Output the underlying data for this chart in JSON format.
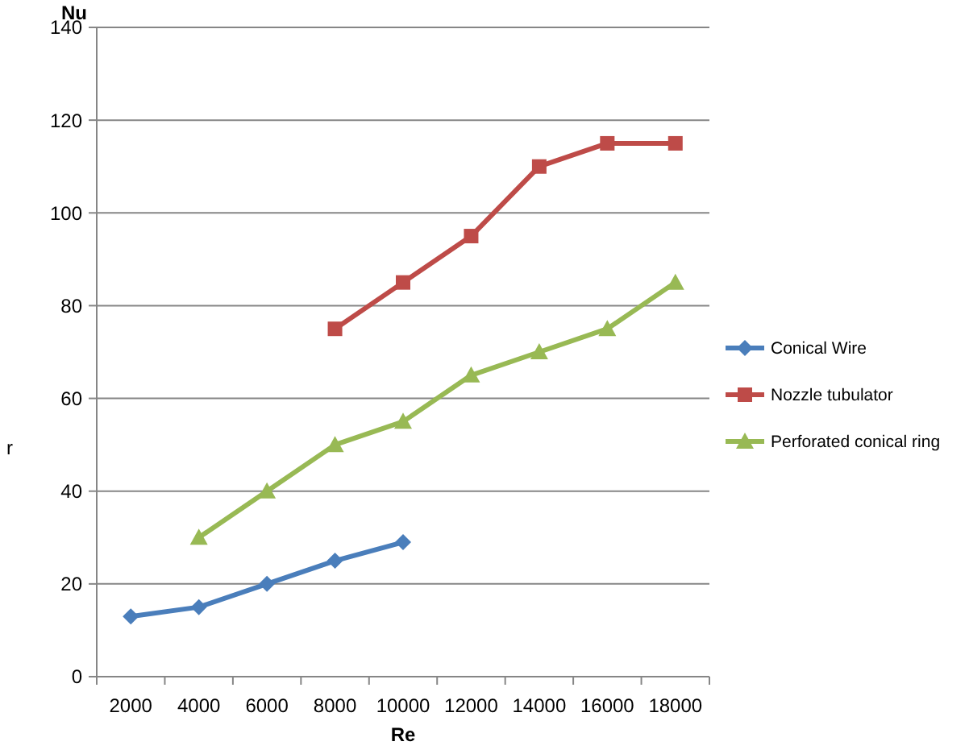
{
  "chart_data": {
    "type": "line",
    "xlabel": "Re",
    "ylabel": "Nu",
    "categories": [
      "2000",
      "4000",
      "6000",
      "8000",
      "10000",
      "12000",
      "14000",
      "16000",
      "18000"
    ],
    "series": [
      {
        "name": "Conical Wire",
        "color": "#4a7ebb",
        "marker": "diamond",
        "values": [
          13,
          15,
          20,
          25,
          29,
          null,
          null,
          null,
          null
        ]
      },
      {
        "name": "Nozzle tubulator",
        "color": "#be4b48",
        "marker": "square",
        "values": [
          null,
          null,
          null,
          75,
          85,
          95,
          110,
          115,
          115
        ]
      },
      {
        "name": "Perforated conical ring",
        "color": "#98b954",
        "marker": "triangle",
        "values": [
          null,
          30,
          40,
          50,
          55,
          65,
          70,
          75,
          85
        ]
      }
    ],
    "ylim": [
      0,
      140
    ],
    "yticks": [
      0,
      20,
      40,
      60,
      80,
      100,
      120,
      140
    ],
    "grid": "y",
    "legend": "right",
    "line_style": "solid",
    "annotations": [
      "r"
    ]
  }
}
